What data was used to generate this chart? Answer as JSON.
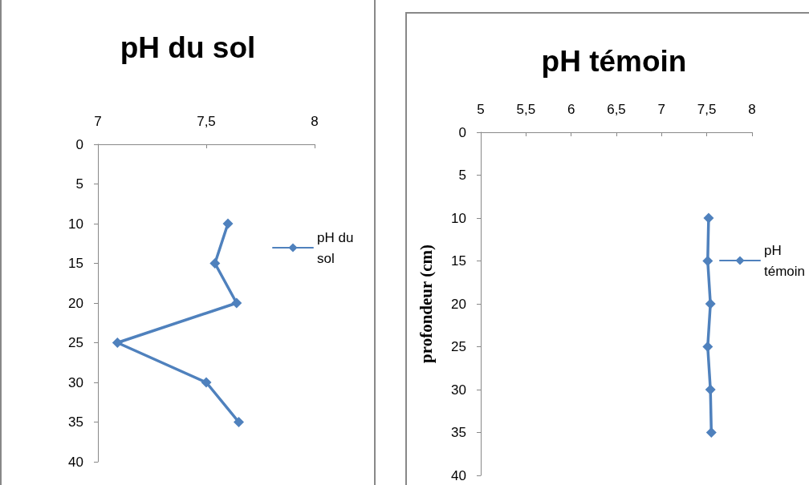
{
  "chart_data": [
    {
      "type": "line",
      "title": "pH du sol",
      "xlim": [
        7,
        8
      ],
      "xticks": [
        7,
        {
          "value": 7.5,
          "label": "7,5"
        },
        8
      ],
      "ylim": [
        40,
        0
      ],
      "yticks": [
        0,
        5,
        10,
        15,
        20,
        25,
        30,
        35,
        40
      ],
      "grid": false,
      "legend": "right",
      "marker": "diamond",
      "line_style": "solid",
      "series": [
        {
          "name": "pH du sol",
          "color": "#4f81bd",
          "x": [
            7.6,
            7.54,
            7.64,
            7.09,
            7.5,
            7.65
          ],
          "values": [
            10,
            15,
            20,
            25,
            30,
            35
          ]
        }
      ]
    },
    {
      "type": "line",
      "title": "pH témoin",
      "ylabel": "profondeur (cm)",
      "xlim": [
        5,
        8
      ],
      "xticks": [
        5,
        {
          "value": 5.5,
          "label": "5,5"
        },
        6,
        {
          "value": 6.5,
          "label": "6,5"
        },
        7,
        {
          "value": 7.5,
          "label": "7,5"
        },
        8
      ],
      "ylim": [
        40,
        0
      ],
      "yticks": [
        0,
        5,
        10,
        15,
        20,
        25,
        30,
        35,
        40
      ],
      "grid": false,
      "legend": "right",
      "marker": "diamond",
      "line_style": "solid",
      "series": [
        {
          "name": "pH témoin",
          "color": "#4f81bd",
          "x": [
            7.52,
            7.51,
            7.54,
            7.51,
            7.54,
            7.55
          ],
          "values": [
            10,
            15,
            20,
            25,
            30,
            35
          ]
        }
      ]
    }
  ]
}
